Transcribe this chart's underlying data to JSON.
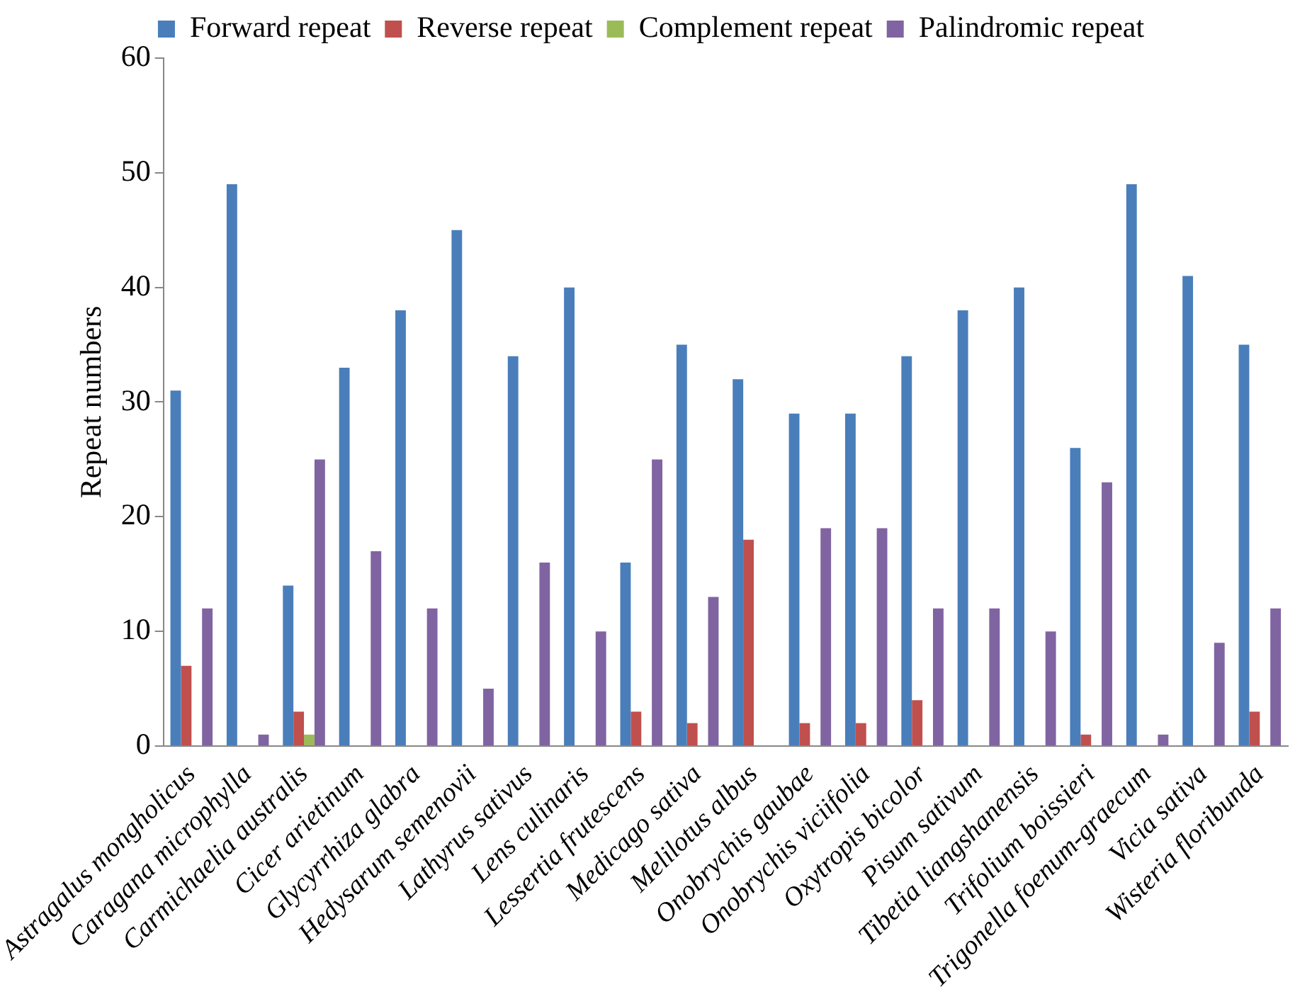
{
  "chart_data": {
    "type": "bar",
    "ylabel": "Repeat numbers",
    "categories": [
      "Astragalus mongholicus",
      "Caragana microphylla",
      "Carmichaelia australis",
      "Cicer arietinum",
      "Glycyrrhiza glabra",
      "Hedysarum semenovii",
      "Lathyrus sativus",
      "Lens culinaris",
      "Lessertia frutescens",
      "Medicago sativa",
      "Melilotus albus",
      "Onobrychis gaubae",
      "Onobrychis viciifolia",
      "Oxytropis bicolor",
      "Pisum sativum",
      "Tibetia liangshanensis",
      "Trifolium boissieri",
      "Trigonella foenum-graecum",
      "Vicia sativa",
      "Wisteria floribunda"
    ],
    "series": [
      {
        "name": "Forward repeat",
        "color": "#4a7ebb",
        "values": [
          31,
          49,
          14,
          33,
          38,
          45,
          34,
          40,
          16,
          35,
          32,
          29,
          29,
          34,
          38,
          40,
          26,
          49,
          41,
          35
        ]
      },
      {
        "name": "Reverse repeat",
        "color": "#c0504d",
        "values": [
          7,
          0,
          3,
          0,
          0,
          0,
          0,
          0,
          3,
          2,
          18,
          2,
          2,
          4,
          0,
          0,
          1,
          0,
          0,
          3
        ]
      },
      {
        "name": "Complement repeat",
        "color": "#9bbb59",
        "values": [
          0,
          0,
          1,
          0,
          0,
          0,
          0,
          0,
          0,
          0,
          0,
          0,
          0,
          0,
          0,
          0,
          0,
          0,
          0,
          0
        ]
      },
      {
        "name": "Palindromic repeat",
        "color": "#8064a2",
        "values": [
          12,
          1,
          25,
          17,
          12,
          5,
          16,
          10,
          25,
          13,
          0,
          19,
          19,
          12,
          12,
          10,
          23,
          1,
          9,
          12
        ]
      }
    ],
    "ylim": [
      0,
      60
    ],
    "yticks": [
      0,
      10,
      20,
      30,
      40,
      50,
      60
    ],
    "grid": false,
    "legend": "top"
  }
}
